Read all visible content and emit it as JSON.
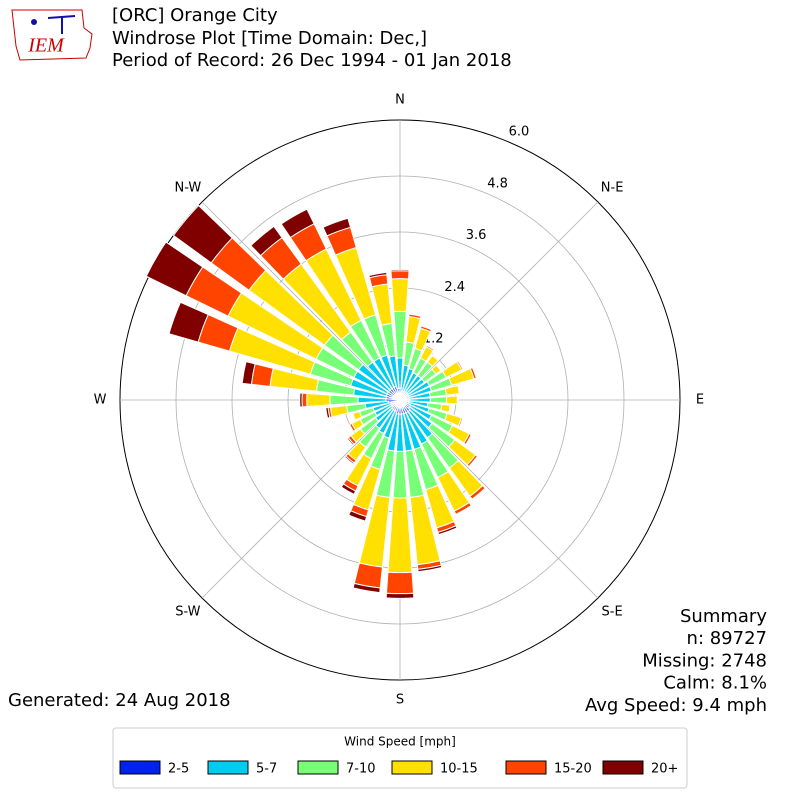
{
  "logo": {
    "text": "IEM"
  },
  "header": {
    "title": "[ORC] Orange City",
    "subtitle": "Windrose Plot [Time Domain: Dec,]",
    "period": "Period of Record: 26 Dec 1994 - 01 Jan 2018"
  },
  "summary": [
    "Summary",
    "n: 89727",
    "Missing: 2748",
    "Calm: 8.1%",
    "Avg Speed: 9.4 mph"
  ],
  "generated": "Generated: 24 Aug 2018",
  "chart_data": {
    "type": "windrose",
    "legend_title": "Wind Speed [mph]",
    "x": [
      0,
      10,
      20,
      30,
      40,
      50,
      60,
      70,
      80,
      90,
      100,
      110,
      120,
      130,
      140,
      150,
      160,
      170,
      180,
      190,
      200,
      210,
      220,
      230,
      240,
      250,
      260,
      270,
      280,
      290,
      300,
      310,
      320,
      330,
      340,
      350
    ],
    "xticks": [
      {
        "value": 0,
        "label": "N"
      },
      {
        "value": 45,
        "label": "N-E"
      },
      {
        "value": 90,
        "label": "E"
      },
      {
        "value": 135,
        "label": "S-E"
      },
      {
        "value": 180,
        "label": "S"
      },
      {
        "value": 225,
        "label": "S-W"
      },
      {
        "value": 270,
        "label": "W"
      },
      {
        "value": 315,
        "label": "N-W"
      }
    ],
    "ylim": [
      0,
      6
    ],
    "yticks": [
      1.2,
      2.4,
      3.6,
      4.8,
      {
        "value": 6,
        "label": "6.0"
      }
    ],
    "grid": true,
    "legend": "bottom",
    "series": [
      {
        "name": "2-5",
        "color": "#0022ee",
        "values": [
          0.25,
          0.2,
          0.2,
          0.2,
          0.2,
          0.2,
          0.2,
          0.2,
          0.2,
          0.2,
          0.2,
          0.2,
          0.25,
          0.25,
          0.3,
          0.3,
          0.3,
          0.3,
          0.3,
          0.3,
          0.25,
          0.25,
          0.25,
          0.2,
          0.2,
          0.2,
          0.25,
          0.3,
          0.3,
          0.3,
          0.3,
          0.3,
          0.3,
          0.3,
          0.3,
          0.25
        ]
      },
      {
        "name": "5-7",
        "color": "#00ccf0",
        "values": [
          0.65,
          0.55,
          0.5,
          0.45,
          0.45,
          0.45,
          0.5,
          0.5,
          0.45,
          0.45,
          0.4,
          0.45,
          0.5,
          0.6,
          0.7,
          0.75,
          0.8,
          0.8,
          0.8,
          0.8,
          0.6,
          0.55,
          0.5,
          0.45,
          0.4,
          0.4,
          0.5,
          0.6,
          0.7,
          0.8,
          0.8,
          0.8,
          0.7,
          0.7,
          0.7,
          0.7
        ]
      },
      {
        "name": "7-10",
        "color": "#77ff77",
        "values": [
          1.0,
          0.5,
          0.45,
          0.35,
          0.35,
          0.3,
          0.4,
          0.45,
          0.35,
          0.35,
          0.3,
          0.4,
          0.5,
          0.6,
          0.8,
          0.8,
          0.9,
          1.0,
          1.0,
          1.0,
          0.7,
          0.6,
          0.5,
          0.4,
          0.35,
          0.3,
          0.4,
          0.6,
          0.8,
          0.9,
          0.9,
          0.9,
          0.8,
          0.9,
          0.9,
          0.7
        ]
      },
      {
        "name": "10-15",
        "color": "#ffe000",
        "values": [
          0.7,
          0.55,
          0.45,
          0.27,
          0.18,
          0.13,
          0.37,
          0.5,
          0.28,
          0.23,
          0.18,
          0.32,
          0.4,
          0.55,
          0.75,
          0.8,
          0.85,
          1.45,
          1.6,
          1.5,
          0.9,
          0.65,
          0.35,
          0.25,
          0.2,
          0.15,
          0.35,
          0.5,
          1.0,
          1.8,
          2.1,
          2.0,
          1.8,
          1.7,
          1.5,
          0.85
        ]
      },
      {
        "name": "15-20",
        "color": "#ff4400",
        "values": [
          0.17,
          0.05,
          0.05,
          0.03,
          0.02,
          0.02,
          0.03,
          0.05,
          0.02,
          0.02,
          0.02,
          0.03,
          0.05,
          0.05,
          0.08,
          0.08,
          0.1,
          0.1,
          0.45,
          0.45,
          0.15,
          0.12,
          0.07,
          0.07,
          0.05,
          0,
          0.05,
          0.1,
          0.4,
          0.7,
          1.0,
          1.0,
          0.7,
          0.6,
          0.45,
          0.2
        ]
      },
      {
        "name": "20+",
        "color": "#800000",
        "values": [
          0.03,
          0,
          0,
          0,
          0,
          0,
          0,
          0,
          0,
          0,
          0,
          0,
          0,
          0,
          0.02,
          0.02,
          0.05,
          0.05,
          0.1,
          0.1,
          0.1,
          0.08,
          0.03,
          0.03,
          0,
          0,
          0.05,
          0.05,
          0.2,
          0.65,
          0.95,
          1.0,
          0.3,
          0.35,
          0.2,
          0.05
        ]
      }
    ]
  }
}
